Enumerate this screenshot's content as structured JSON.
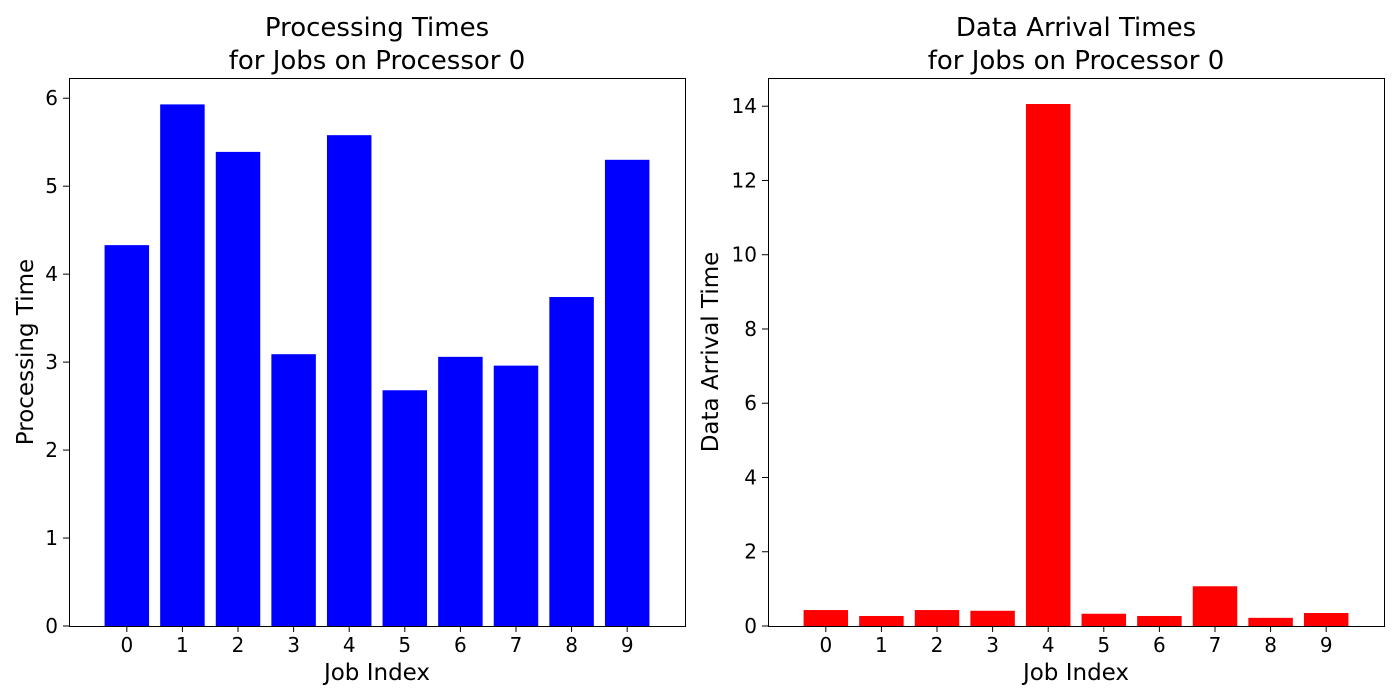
{
  "chart_data": [
    {
      "type": "bar",
      "title": [
        "Processing Times",
        "for Jobs on Processor 0"
      ],
      "xlabel": "Job Index",
      "ylabel": "Processing Time",
      "categories": [
        "0",
        "1",
        "2",
        "3",
        "4",
        "5",
        "6",
        "7",
        "8",
        "9"
      ],
      "values": [
        4.33,
        5.93,
        5.39,
        3.09,
        5.58,
        2.68,
        3.06,
        2.96,
        3.74,
        5.3
      ],
      "color": "#0000ff",
      "ylim": [
        0,
        6.23
      ],
      "yticks": [
        0,
        1,
        2,
        3,
        4,
        5,
        6
      ],
      "grid": false
    },
    {
      "type": "bar",
      "title": [
        "Data Arrival Times",
        "for Jobs on Processor 0"
      ],
      "xlabel": "Job Index",
      "ylabel": "Data Arrival Time",
      "categories": [
        "0",
        "1",
        "2",
        "3",
        "4",
        "5",
        "6",
        "7",
        "8",
        "9"
      ],
      "values": [
        0.43,
        0.27,
        0.43,
        0.41,
        14.06,
        0.33,
        0.27,
        1.07,
        0.22,
        0.35
      ],
      "color": "#ff0000",
      "ylim": [
        0,
        14.76
      ],
      "yticks": [
        0,
        2,
        4,
        6,
        8,
        10,
        12,
        14
      ],
      "grid": false
    }
  ]
}
